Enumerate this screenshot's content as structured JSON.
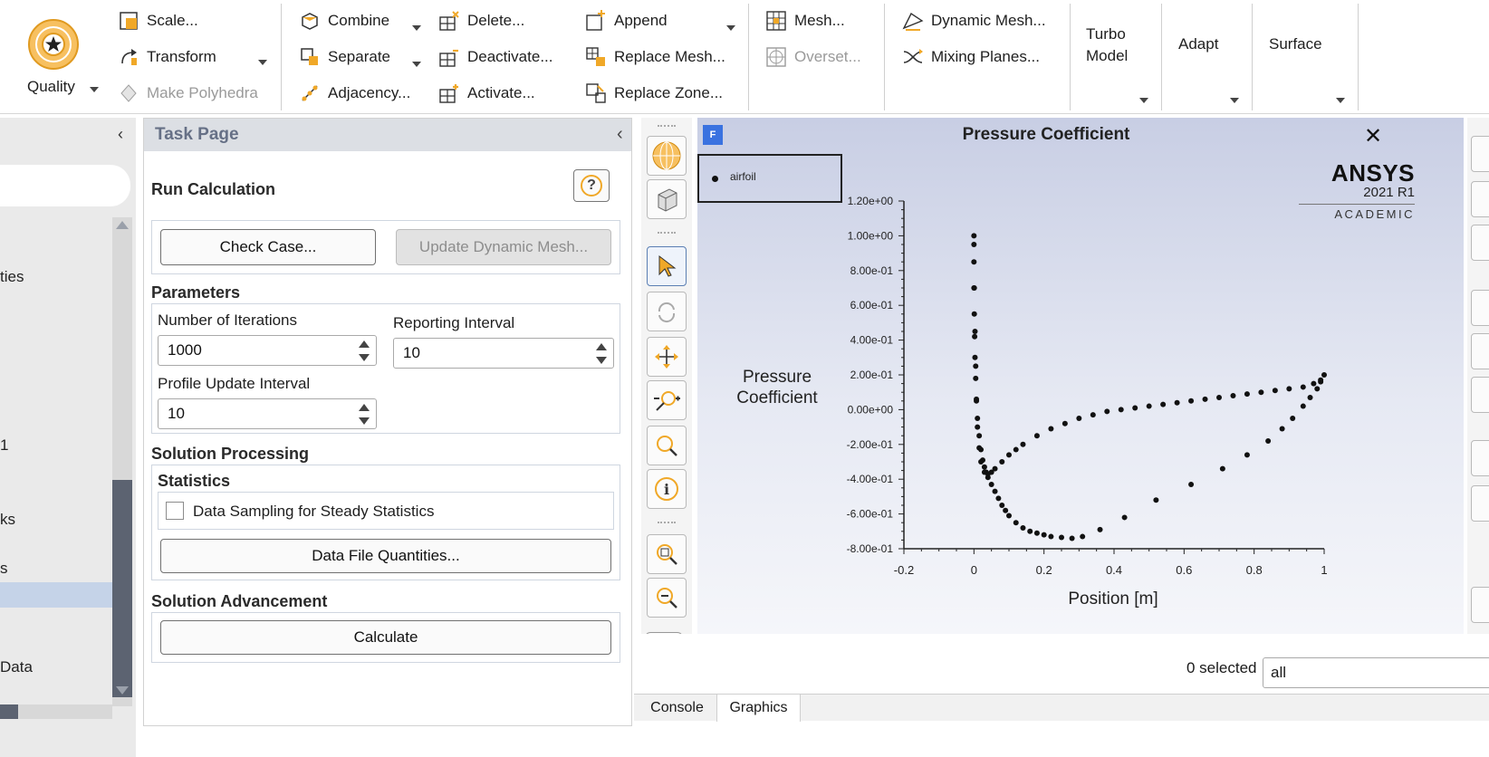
{
  "ribbon": {
    "quality": "Quality",
    "scale": "Scale...",
    "transform": "Transform",
    "make_polyhedra": "Make Polyhedra",
    "combine": "Combine",
    "separate": "Separate",
    "adjacency": "Adjacency...",
    "delete": "Delete...",
    "deactivate": "Deactivate...",
    "activate": "Activate...",
    "append": "Append",
    "replace_mesh": "Replace Mesh...",
    "replace_zone": "Replace Zone...",
    "mesh": "Mesh...",
    "overset": "Overset...",
    "dynamic_mesh": "Dynamic Mesh...",
    "mixing_planes": "Mixing Planes...",
    "turbo_model_1": "Turbo",
    "turbo_model_2": "Model",
    "adapt": "Adapt",
    "surface": "Surface"
  },
  "outline": {
    "item_ties": "ties",
    "item_1": "1",
    "item_ks": "ks",
    "item_s": "s",
    "item_data": "Data"
  },
  "task": {
    "header": "Task Page",
    "title": "Run Calculation",
    "help_icon": "?",
    "check_case": "Check Case...",
    "update_dynamic_mesh": "Update Dynamic Mesh...",
    "parameters": "Parameters",
    "num_iterations_label": "Number of Iterations",
    "num_iterations_value": "1000",
    "reporting_interval_label": "Reporting Interval",
    "reporting_interval_value": "10",
    "profile_update_label": "Profile Update Interval",
    "profile_update_value": "10",
    "solution_processing": "Solution Processing",
    "statistics": "Statistics",
    "data_sampling": "Data Sampling for Steady Statistics",
    "data_file_quantities": "Data File Quantities...",
    "solution_advancement": "Solution Advancement",
    "calculate": "Calculate"
  },
  "graphics": {
    "title": "Pressure Coefficient",
    "badge": "F",
    "legend_entry": "airfoil",
    "ansys_1": "ANSYS",
    "ansys_2": "2021 R1",
    "ansys_3": "ACADEMIC",
    "selected_count": "0 selected",
    "select_value": "all"
  },
  "bottom_tabs": [
    "Console",
    "Graphics"
  ],
  "colors": {
    "accent": "#3a72e0",
    "quality_icon": "#f0a828"
  },
  "chart_data": {
    "type": "scatter",
    "ylabel_1": "Pressure",
    "ylabel_2": "Coefficient",
    "xlabel": "Position [m]",
    "xlim": [
      -0.2,
      1.0
    ],
    "ylim": [
      -0.8,
      1.2
    ],
    "xticks": [
      "-0.2",
      "0",
      "0.2",
      "0.4",
      "0.6",
      "0.8",
      "1"
    ],
    "yticks": [
      "-8.00e-01",
      "-6.00e-01",
      "-4.00e-01",
      "-2.00e-01",
      "0.00e+00",
      "2.00e-01",
      "4.00e-01",
      "6.00e-01",
      "8.00e-01",
      "1.00e+00",
      "1.20e+00"
    ],
    "series": [
      {
        "name": "airfoil",
        "x": [
          0.0,
          0.0,
          0.0,
          0.0,
          0.001,
          0.002,
          0.003,
          0.005,
          0.007,
          0.01,
          0.015,
          0.02,
          0.025,
          0.03,
          0.035,
          0.04,
          0.05,
          0.06,
          0.07,
          0.08,
          0.09,
          0.1,
          0.12,
          0.14,
          0.16,
          0.18,
          0.2,
          0.22,
          0.25,
          0.28,
          0.31,
          0.36,
          0.43,
          0.52,
          0.62,
          0.71,
          0.78,
          0.84,
          0.88,
          0.91,
          0.94,
          0.96,
          0.98,
          0.99,
          1.0,
          0.99,
          0.97,
          0.94,
          0.9,
          0.86,
          0.82,
          0.78,
          0.74,
          0.7,
          0.66,
          0.62,
          0.58,
          0.54,
          0.5,
          0.46,
          0.42,
          0.38,
          0.34,
          0.3,
          0.26,
          0.22,
          0.18,
          0.14,
          0.12,
          0.1,
          0.08,
          0.06,
          0.05,
          0.04,
          0.03,
          0.02,
          0.015,
          0.01,
          0.007,
          0.005,
          0.003,
          0.001
        ],
        "y": [
          1.0,
          0.95,
          0.85,
          0.7,
          0.55,
          0.42,
          0.3,
          0.18,
          0.06,
          -0.05,
          -0.15,
          -0.23,
          -0.29,
          -0.33,
          -0.36,
          -0.39,
          -0.43,
          -0.47,
          -0.51,
          -0.55,
          -0.58,
          -0.61,
          -0.65,
          -0.68,
          -0.7,
          -0.71,
          -0.72,
          -0.73,
          -0.735,
          -0.74,
          -0.73,
          -0.69,
          -0.62,
          -0.52,
          -0.43,
          -0.34,
          -0.26,
          -0.18,
          -0.11,
          -0.05,
          0.02,
          0.07,
          0.12,
          0.16,
          0.2,
          0.17,
          0.15,
          0.13,
          0.12,
          0.11,
          0.1,
          0.09,
          0.08,
          0.07,
          0.06,
          0.05,
          0.04,
          0.03,
          0.02,
          0.01,
          0.0,
          -0.01,
          -0.03,
          -0.05,
          -0.08,
          -0.11,
          -0.15,
          -0.2,
          -0.23,
          -0.26,
          -0.3,
          -0.34,
          -0.36,
          -0.37,
          -0.36,
          -0.3,
          -0.22,
          -0.1,
          0.05,
          0.25,
          0.45,
          0.7
        ]
      }
    ],
    "grid": false,
    "legend": "top-left"
  }
}
